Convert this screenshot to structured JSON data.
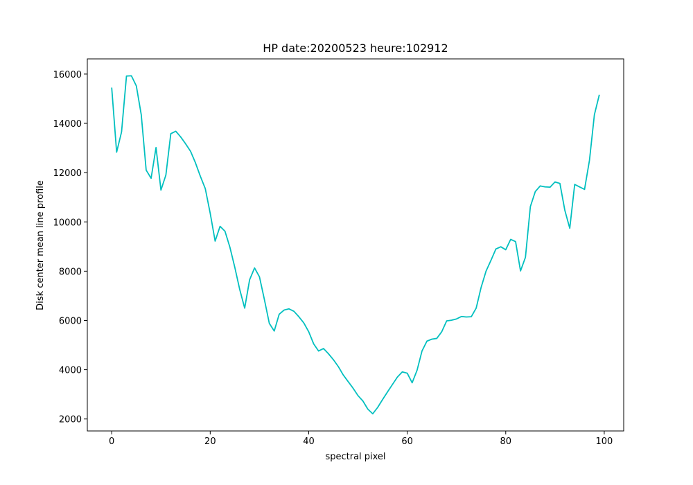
{
  "chart_data": {
    "type": "line",
    "title": "HP date:20200523 heure:102912",
    "xlabel": "spectral pixel",
    "ylabel": "Disk center mean line profile",
    "x": [
      0,
      1,
      2,
      3,
      4,
      5,
      6,
      7,
      8,
      9,
      10,
      11,
      12,
      13,
      14,
      15,
      16,
      17,
      18,
      19,
      20,
      21,
      22,
      23,
      24,
      25,
      26,
      27,
      28,
      29,
      30,
      31,
      32,
      33,
      34,
      35,
      36,
      37,
      38,
      39,
      40,
      41,
      42,
      43,
      44,
      45,
      46,
      47,
      48,
      49,
      50,
      51,
      52,
      53,
      54,
      55,
      56,
      57,
      58,
      59,
      60,
      61,
      62,
      63,
      64,
      65,
      66,
      67,
      68,
      69,
      70,
      71,
      72,
      73,
      74,
      75,
      76,
      77,
      78,
      79,
      80,
      81,
      82,
      83,
      84,
      85,
      86,
      87,
      88,
      89,
      90,
      91,
      92,
      93,
      94,
      95,
      96,
      97,
      98,
      99
    ],
    "series": [
      {
        "color": "#00bfbf",
        "values": [
          15450,
          12830,
          13650,
          15920,
          15930,
          15520,
          14350,
          12100,
          11770,
          13020,
          11290,
          11900,
          13580,
          13680,
          13450,
          13170,
          12870,
          12400,
          11850,
          11350,
          10350,
          9220,
          9820,
          9620,
          8970,
          8150,
          7250,
          6500,
          7650,
          8130,
          7770,
          6850,
          5880,
          5570,
          6250,
          6420,
          6470,
          6370,
          6150,
          5900,
          5540,
          5050,
          4760,
          4860,
          4650,
          4410,
          4130,
          3790,
          3520,
          3250,
          2950,
          2730,
          2400,
          2210,
          2470,
          2790,
          3100,
          3400,
          3700,
          3910,
          3860,
          3470,
          3980,
          4760,
          5160,
          5240,
          5270,
          5540,
          5980,
          6010,
          6060,
          6160,
          6140,
          6150,
          6500,
          7340,
          8000,
          8440,
          8900,
          8990,
          8870,
          9290,
          9200,
          8010,
          8560,
          10620,
          11230,
          11460,
          11420,
          11410,
          11620,
          11560,
          10470,
          9740,
          11520,
          11420,
          11320,
          12500,
          14350,
          15160
        ]
      }
    ],
    "xlim": [
      -4.95,
      103.95
    ],
    "xticks": [
      0,
      20,
      40,
      60,
      80,
      100
    ],
    "ylim": [
      1514,
      16616
    ],
    "yticks": [
      2000,
      4000,
      6000,
      8000,
      10000,
      12000,
      14000,
      16000
    ]
  }
}
